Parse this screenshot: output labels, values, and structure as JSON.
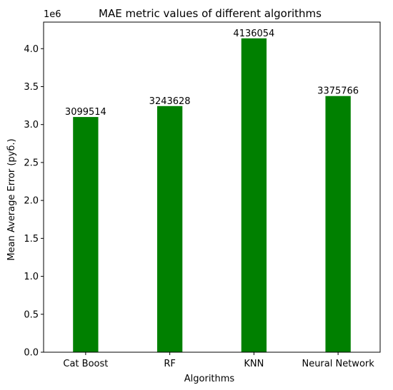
{
  "chart_data": {
    "type": "bar",
    "title": "MAE metric values of different algorithms",
    "xlabel": "Algorithms",
    "ylabel": "Mean Average Error (руб.)",
    "y_offset_label": "1e6",
    "categories": [
      "Cat Boost",
      "RF",
      "KNN",
      "Neural Network"
    ],
    "values": [
      3099514,
      3243628,
      4136054,
      3375766
    ],
    "data_labels": [
      "3099514",
      "3243628",
      "4136054",
      "3375766"
    ],
    "ylim": [
      0,
      4350000
    ],
    "yticks": [
      0,
      500000,
      1000000,
      1500000,
      2000000,
      2500000,
      3000000,
      3500000,
      4000000
    ],
    "ytick_labels": [
      "0.0",
      "0.5",
      "1.0",
      "1.5",
      "2.0",
      "2.5",
      "3.0",
      "3.5",
      "4.0"
    ],
    "bar_color": "#008000",
    "grid": false,
    "legend": "none"
  }
}
